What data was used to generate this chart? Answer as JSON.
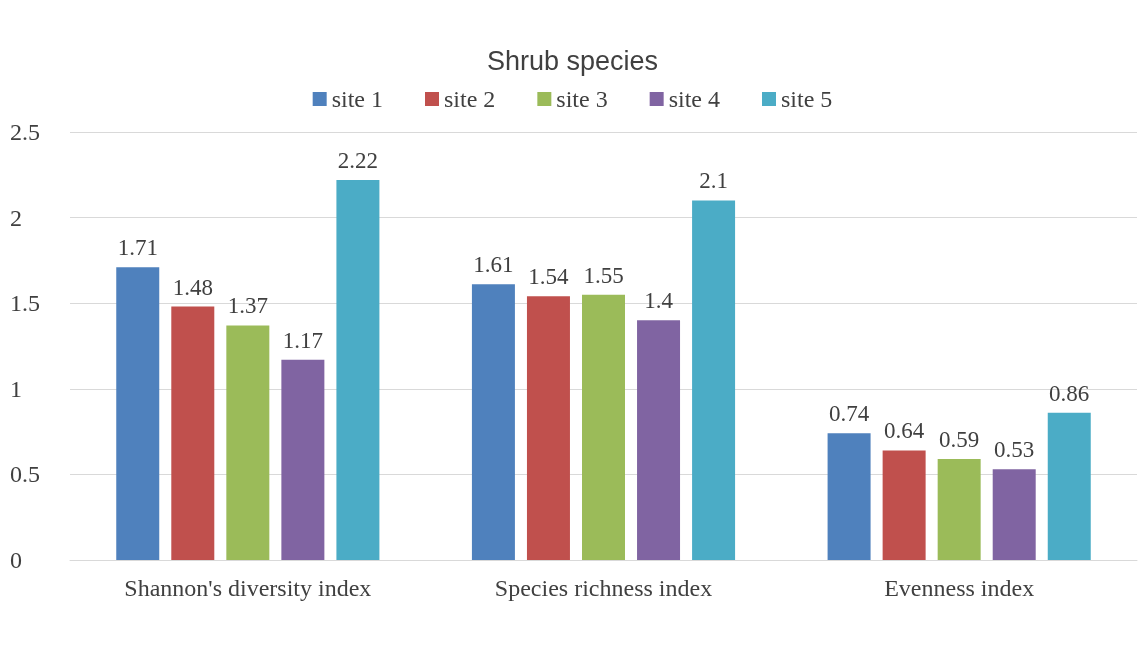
{
  "chart_data": {
    "type": "bar",
    "title": "Shrub species",
    "categories": [
      "Shannon's diversity index",
      "Species richness index",
      "Evenness index"
    ],
    "series": [
      {
        "name": "site 1",
        "color": "#4f81bd",
        "values": [
          1.71,
          1.61,
          0.74
        ]
      },
      {
        "name": "site 2",
        "color": "#c0504d",
        "values": [
          1.48,
          1.54,
          0.64
        ]
      },
      {
        "name": "site 3",
        "color": "#9bbb59",
        "values": [
          1.37,
          1.55,
          0.59
        ]
      },
      {
        "name": "site 4",
        "color": "#8064a2",
        "values": [
          1.17,
          1.4,
          0.53
        ]
      },
      {
        "name": "site 5",
        "color": "#4bacc6",
        "values": [
          2.22,
          2.1,
          0.86
        ]
      }
    ],
    "ylim": [
      0,
      2.5
    ],
    "yticks": [
      0,
      0.5,
      1,
      1.5,
      2,
      2.5
    ],
    "grid": "y",
    "legend": "top",
    "data_labels": true
  }
}
